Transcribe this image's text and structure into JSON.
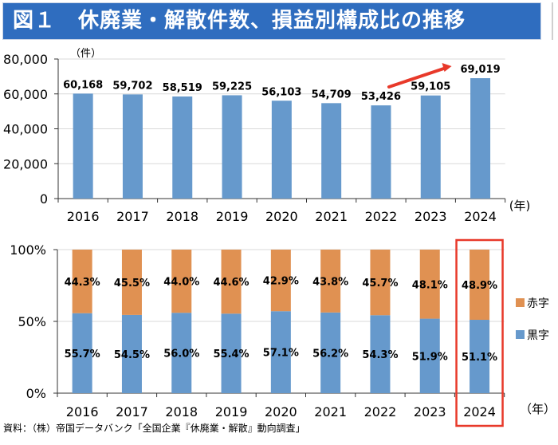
{
  "header": {
    "figure_label": "図１",
    "title": "休廃業・解散件数、損益別構成比の推移"
  },
  "chart_data": [
    {
      "type": "bar",
      "title": "休廃業・解散件数",
      "unit_label": "（件）",
      "x_unit_label": "(年)",
      "categories": [
        "2016",
        "2017",
        "2018",
        "2019",
        "2020",
        "2021",
        "2022",
        "2023",
        "2024"
      ],
      "values": [
        60168,
        59702,
        58519,
        59225,
        56103,
        54709,
        53426,
        59105,
        69019
      ],
      "value_labels": [
        "60,168",
        "59,702",
        "58,519",
        "59,225",
        "56,103",
        "54,709",
        "53,426",
        "59,105",
        "69,019"
      ],
      "ylim": [
        0,
        80000
      ],
      "yticks": [
        0,
        20000,
        40000,
        60000,
        80000
      ],
      "ytick_labels": [
        "0",
        "20,000",
        "40,000",
        "60,000",
        "80,000"
      ],
      "grid": true,
      "bar_color": "#6699cc",
      "annotation": {
        "type": "arrow",
        "from": "2022",
        "to": "2024",
        "color": "#e8392a"
      }
    },
    {
      "type": "bar",
      "stacked": true,
      "percent": true,
      "title": "損益別構成比",
      "x_unit_label": "（年）",
      "categories": [
        "2016",
        "2017",
        "2018",
        "2019",
        "2020",
        "2021",
        "2022",
        "2023",
        "2024"
      ],
      "series": [
        {
          "name": "黒字",
          "color": "#6699cc",
          "values": [
            55.7,
            54.5,
            56.0,
            55.4,
            57.1,
            56.2,
            54.3,
            51.9,
            51.1
          ],
          "labels": [
            "55.7%",
            "54.5%",
            "56.0%",
            "55.4%",
            "57.1%",
            "56.2%",
            "54.3%",
            "51.9%",
            "51.1%"
          ]
        },
        {
          "name": "赤字",
          "color": "#e09152",
          "values": [
            44.3,
            45.5,
            44.0,
            44.6,
            42.9,
            43.8,
            45.7,
            48.1,
            48.9
          ],
          "labels": [
            "44.3%",
            "45.5%",
            "44.0%",
            "44.6%",
            "42.9%",
            "43.8%",
            "45.7%",
            "48.1%",
            "48.9%"
          ]
        }
      ],
      "ylim": [
        0,
        100
      ],
      "yticks": [
        0,
        50,
        100
      ],
      "ytick_labels": [
        "0%",
        "50%",
        "100%"
      ],
      "grid": true,
      "legend": {
        "placement": "right",
        "entries": [
          "赤字",
          "黒字"
        ]
      },
      "highlight": {
        "category": "2024",
        "color": "#e8392a"
      }
    }
  ],
  "footer": {
    "source": "資料：（株）帝国データバンク「全国企業『休廃業・解散』動向調査」"
  }
}
